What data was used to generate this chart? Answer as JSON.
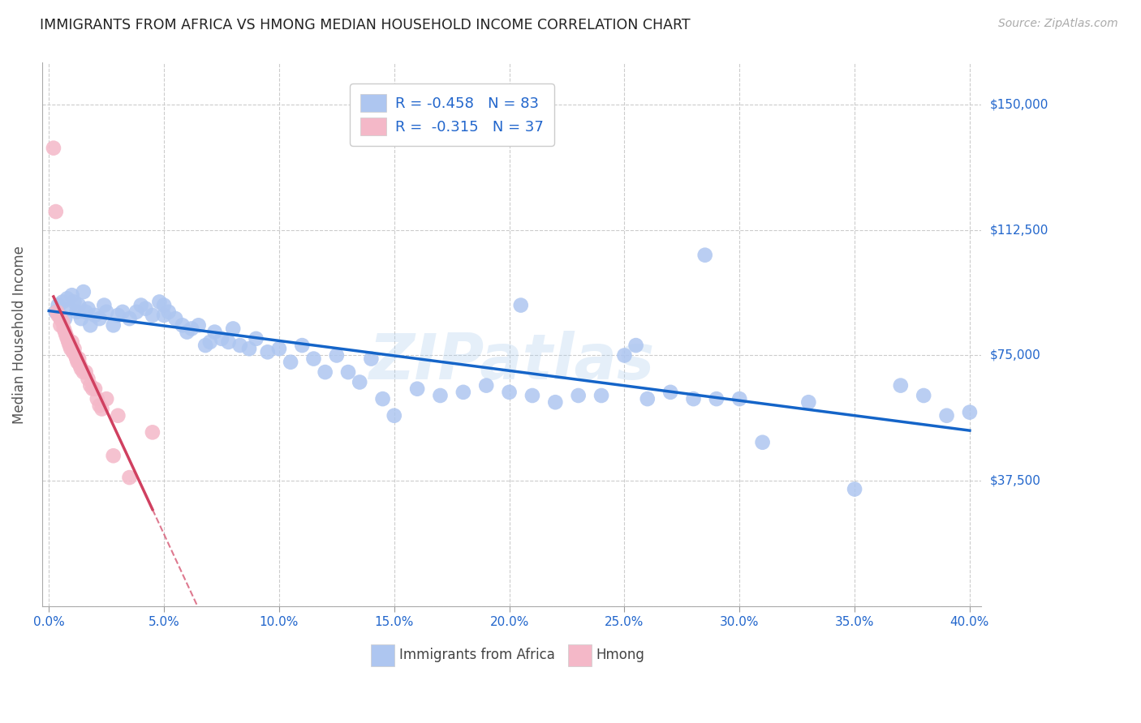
{
  "title": "IMMIGRANTS FROM AFRICA VS HMONG MEDIAN HOUSEHOLD INCOME CORRELATION CHART",
  "source": "Source: ZipAtlas.com",
  "xlabel_vals": [
    0.0,
    5.0,
    10.0,
    15.0,
    20.0,
    25.0,
    30.0,
    35.0,
    40.0
  ],
  "ylabel": "Median Household Income",
  "ylabel_ticks": [
    0,
    37500,
    75000,
    112500,
    150000
  ],
  "ylabel_labels": [
    "",
    "$37,500",
    "$75,000",
    "$112,500",
    "$150,000"
  ],
  "xlim": [
    -0.3,
    40.5
  ],
  "ylim": [
    0,
    162500
  ],
  "africa_color": "#aec6f0",
  "hmong_color": "#f4b8c8",
  "africa_trend_color": "#1464c8",
  "hmong_trend_color": "#d04060",
  "watermark": "ZIPatlas",
  "legend_R1": "-0.458",
  "legend_N1": "83",
  "legend_R2": "-0.315",
  "legend_N2": "37",
  "africa_x": [
    0.3,
    0.4,
    0.5,
    0.6,
    0.7,
    0.8,
    0.9,
    1.0,
    1.1,
    1.2,
    1.3,
    1.4,
    1.5,
    1.6,
    1.7,
    1.8,
    2.0,
    2.2,
    2.4,
    2.5,
    2.8,
    3.0,
    3.2,
    3.5,
    3.8,
    4.0,
    4.2,
    4.5,
    4.8,
    5.0,
    5.0,
    5.2,
    5.5,
    5.8,
    6.0,
    6.2,
    6.5,
    6.8,
    7.0,
    7.2,
    7.5,
    7.8,
    8.0,
    8.3,
    8.7,
    9.0,
    9.5,
    10.0,
    10.5,
    11.0,
    11.5,
    12.0,
    12.5,
    13.0,
    13.5,
    14.0,
    14.5,
    15.0,
    16.0,
    17.0,
    18.0,
    19.0,
    20.0,
    20.5,
    21.0,
    22.0,
    23.0,
    24.0,
    25.0,
    25.5,
    26.0,
    27.0,
    28.0,
    29.0,
    30.0,
    31.0,
    33.0,
    35.0,
    37.0,
    38.0,
    39.0,
    40.0,
    28.5
  ],
  "africa_y": [
    88000,
    90000,
    87000,
    91000,
    86000,
    92000,
    89000,
    93000,
    91000,
    88000,
    90000,
    86000,
    94000,
    88000,
    89000,
    84000,
    87000,
    86000,
    90000,
    88000,
    84000,
    87000,
    88000,
    86000,
    88000,
    90000,
    89000,
    87000,
    91000,
    87000,
    90000,
    88000,
    86000,
    84000,
    82000,
    83000,
    84000,
    78000,
    79000,
    82000,
    80000,
    79000,
    83000,
    78000,
    77000,
    80000,
    76000,
    77000,
    73000,
    78000,
    74000,
    70000,
    75000,
    70000,
    67000,
    74000,
    62000,
    57000,
    65000,
    63000,
    64000,
    66000,
    64000,
    90000,
    63000,
    61000,
    63000,
    63000,
    75000,
    78000,
    62000,
    64000,
    62000,
    62000,
    62000,
    49000,
    61000,
    35000,
    66000,
    63000,
    57000,
    58000,
    105000
  ],
  "hmong_x": [
    0.2,
    0.3,
    0.35,
    0.4,
    0.5,
    0.5,
    0.6,
    0.65,
    0.7,
    0.75,
    0.8,
    0.85,
    0.9,
    0.95,
    1.0,
    1.05,
    1.1,
    1.15,
    1.2,
    1.25,
    1.3,
    1.35,
    1.4,
    1.5,
    1.6,
    1.7,
    1.8,
    1.9,
    2.0,
    2.1,
    2.2,
    2.3,
    2.5,
    2.8,
    3.0,
    3.5,
    4.5
  ],
  "hmong_y": [
    137000,
    118000,
    88000,
    87000,
    86000,
    84000,
    85000,
    83000,
    82000,
    81000,
    80000,
    79000,
    78000,
    77000,
    79000,
    76000,
    77000,
    75000,
    74000,
    73000,
    74000,
    72000,
    71000,
    70000,
    70000,
    68000,
    66000,
    65000,
    65000,
    62000,
    60000,
    59000,
    62000,
    45000,
    57000,
    38500,
    52000
  ]
}
